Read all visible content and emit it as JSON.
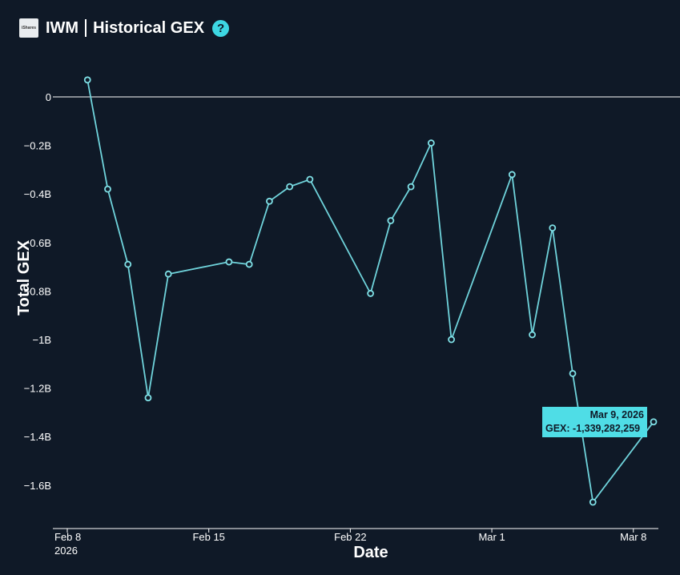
{
  "header": {
    "logo_text": "iShares",
    "ticker": "IWM",
    "title": "Historical GEX",
    "help_glyph": "?"
  },
  "colors": {
    "background": "#0f1927",
    "line": "#6fd3db",
    "marker": "#7fe0e6",
    "tooltip_bg": "#4fdde6"
  },
  "tooltip": {
    "date": "Mar 9, 2026",
    "value": "GEX: -1,339,282,259"
  },
  "chart_data": {
    "type": "line",
    "xlabel": "Date",
    "ylabel": "Total GEX",
    "ylim": [
      -1.75,
      0.08
    ],
    "y_unit": "B",
    "grid": false,
    "x_tick_labels": [
      {
        "date": "2026-02-08",
        "label": "Feb 8",
        "sublabel": "2026"
      },
      {
        "date": "2026-02-15",
        "label": "Feb 15",
        "sublabel": ""
      },
      {
        "date": "2026-02-22",
        "label": "Feb 22",
        "sublabel": ""
      },
      {
        "date": "2026-03-01",
        "label": "Mar 1",
        "sublabel": ""
      },
      {
        "date": "2026-03-08",
        "label": "Mar 8",
        "sublabel": ""
      }
    ],
    "y_tick_labels": [
      {
        "value": 0,
        "label": "0"
      },
      {
        "value": -0.2,
        "label": "−0.2B"
      },
      {
        "value": -0.4,
        "label": "−0.4B"
      },
      {
        "value": -0.6,
        "label": "−0.6B"
      },
      {
        "value": -0.8,
        "label": "−0.8B"
      },
      {
        "value": -1.0,
        "label": "−1B"
      },
      {
        "value": -1.2,
        "label": "−1.2B"
      },
      {
        "value": -1.4,
        "label": "−1.4B"
      },
      {
        "value": -1.6,
        "label": "−1.6B"
      }
    ],
    "series": [
      {
        "points": [
          {
            "x": "2026-02-09",
            "y": 0.07
          },
          {
            "x": "2026-02-10",
            "y": -0.38
          },
          {
            "x": "2026-02-11",
            "y": -0.69
          },
          {
            "x": "2026-02-12",
            "y": -1.24
          },
          {
            "x": "2026-02-13",
            "y": -0.73
          },
          {
            "x": "2026-02-16",
            "y": -0.68
          },
          {
            "x": "2026-02-17",
            "y": -0.69
          },
          {
            "x": "2026-02-18",
            "y": -0.43
          },
          {
            "x": "2026-02-19",
            "y": -0.37
          },
          {
            "x": "2026-02-20",
            "y": -0.34
          },
          {
            "x": "2026-02-23",
            "y": -0.81
          },
          {
            "x": "2026-02-24",
            "y": -0.51
          },
          {
            "x": "2026-02-25",
            "y": -0.37
          },
          {
            "x": "2026-02-26",
            "y": -0.19
          },
          {
            "x": "2026-02-27",
            "y": -1.0
          },
          {
            "x": "2026-03-02",
            "y": -0.32
          },
          {
            "x": "2026-03-03",
            "y": -0.98
          },
          {
            "x": "2026-03-04",
            "y": -0.54
          },
          {
            "x": "2026-03-05",
            "y": -1.14
          },
          {
            "x": "2026-03-06",
            "y": -1.67
          },
          {
            "x": "2026-03-09",
            "y": -1.339
          }
        ]
      }
    ]
  }
}
